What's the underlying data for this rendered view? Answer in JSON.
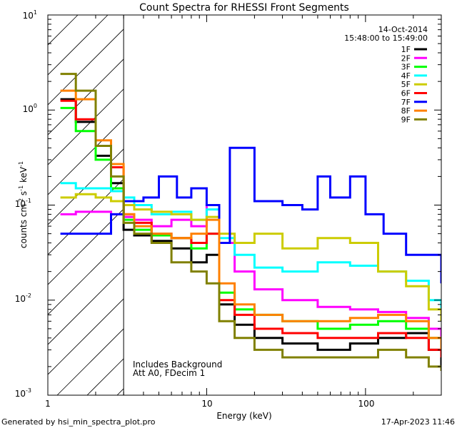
{
  "chart_data": {
    "type": "line",
    "title": "Count Spectra for RHESSI Front Segments",
    "xlabel": "Energy (keV)",
    "ylabel_parts": [
      "counts cm",
      "-2",
      " s",
      "-1",
      " keV",
      "-1"
    ],
    "xscale": "log",
    "yscale": "log",
    "xlim": [
      1,
      300
    ],
    "ylim": [
      0.001,
      10
    ],
    "x_ticks_major": [
      1,
      10,
      100
    ],
    "x_tick_labels": [
      "1",
      "10",
      "100"
    ],
    "y_ticks_major": [
      0.001,
      0.01,
      0.1,
      1,
      10
    ],
    "y_tick_label_base": [
      "10",
      "10",
      "10",
      "10",
      "10"
    ],
    "y_tick_label_exp": [
      "-3",
      "-2",
      "-1",
      "0",
      "1"
    ],
    "date": "14-Oct-2014",
    "time_range": "15:48:00 to 15:49:00",
    "annotations": [
      "Includes Background",
      "Att A0, FDecim 1"
    ],
    "excluded_region_max_keV": 3,
    "series": [
      {
        "name": "1F",
        "color": "#000000",
        "x": [
          1.2,
          1.5,
          2.0,
          2.5,
          3.0,
          3.5,
          4.5,
          6.0,
          8.0,
          10.0,
          12.0,
          15.0,
          20.0,
          30.0,
          50.0,
          80.0,
          120.0,
          180.0,
          250.0,
          300.0
        ],
        "y": [
          1.3,
          0.75,
          0.33,
          0.17,
          0.055,
          0.048,
          0.042,
          0.035,
          0.025,
          0.03,
          0.009,
          0.0055,
          0.004,
          0.0035,
          0.003,
          0.0035,
          0.004,
          0.0045,
          0.003,
          0.002
        ]
      },
      {
        "name": "2F",
        "color": "#ff00ff",
        "x": [
          1.2,
          1.5,
          2.0,
          2.5,
          3.0,
          3.5,
          4.5,
          6.0,
          8.0,
          10.0,
          12.0,
          15.0,
          20.0,
          30.0,
          50.0,
          80.0,
          120.0,
          180.0,
          250.0,
          300.0
        ],
        "y": [
          0.08,
          0.085,
          0.085,
          0.08,
          0.075,
          0.07,
          0.06,
          0.07,
          0.06,
          0.1,
          0.04,
          0.02,
          0.013,
          0.01,
          0.0085,
          0.008,
          0.0075,
          0.0065,
          0.005,
          0.0035
        ]
      },
      {
        "name": "3F",
        "color": "#00ff00",
        "x": [
          1.2,
          1.5,
          2.0,
          2.5,
          3.0,
          3.5,
          4.5,
          6.0,
          8.0,
          10.0,
          12.0,
          15.0,
          20.0,
          30.0,
          50.0,
          80.0,
          120.0,
          180.0,
          250.0,
          300.0
        ],
        "y": [
          1.05,
          0.6,
          0.3,
          0.15,
          0.07,
          0.055,
          0.048,
          0.045,
          0.035,
          0.05,
          0.012,
          0.008,
          0.007,
          0.006,
          0.005,
          0.0055,
          0.006,
          0.005,
          0.004,
          0.003
        ]
      },
      {
        "name": "4F",
        "color": "#00ffff",
        "x": [
          1.2,
          1.5,
          2.0,
          2.5,
          3.0,
          3.5,
          4.5,
          6.0,
          8.0,
          10.0,
          12.0,
          15.0,
          20.0,
          30.0,
          50.0,
          80.0,
          120.0,
          180.0,
          250.0,
          300.0
        ],
        "y": [
          0.17,
          0.15,
          0.15,
          0.14,
          0.12,
          0.1,
          0.08,
          0.085,
          0.07,
          0.09,
          0.045,
          0.03,
          0.022,
          0.02,
          0.025,
          0.023,
          0.02,
          0.016,
          0.01,
          0.007
        ]
      },
      {
        "name": "5F",
        "color": "#cccc00",
        "x": [
          1.2,
          1.5,
          2.0,
          2.5,
          3.0,
          3.5,
          4.5,
          6.0,
          8.0,
          10.0,
          12.0,
          15.0,
          20.0,
          30.0,
          50.0,
          80.0,
          120.0,
          180.0,
          250.0,
          300.0
        ],
        "y": [
          0.12,
          0.13,
          0.12,
          0.11,
          0.1,
          0.09,
          0.085,
          0.08,
          0.07,
          0.075,
          0.05,
          0.04,
          0.05,
          0.035,
          0.045,
          0.04,
          0.02,
          0.014,
          0.008,
          0.006
        ]
      },
      {
        "name": "6F",
        "color": "#ff0000",
        "x": [
          1.2,
          1.5,
          2.0,
          2.5,
          3.0,
          3.5,
          4.5,
          6.0,
          8.0,
          10.0,
          12.0,
          15.0,
          20.0,
          30.0,
          50.0,
          80.0,
          120.0,
          180.0,
          250.0,
          300.0
        ],
        "y": [
          1.25,
          0.8,
          0.42,
          0.25,
          0.08,
          0.065,
          0.05,
          0.045,
          0.04,
          0.05,
          0.01,
          0.007,
          0.005,
          0.0045,
          0.004,
          0.004,
          0.0045,
          0.004,
          0.003,
          0.0025
        ]
      },
      {
        "name": "7F",
        "color": "#0000ff",
        "x": [
          1.2,
          1.5,
          2.0,
          2.5,
          3.0,
          4.0,
          5.0,
          6.5,
          8.0,
          10.0,
          12.0,
          14.0,
          20.0,
          30.0,
          40.0,
          50.0,
          60.0,
          80.0,
          100.0,
          130.0,
          180.0,
          250.0,
          300.0
        ],
        "y": [
          0.05,
          0.05,
          0.05,
          0.08,
          0.11,
          0.12,
          0.2,
          0.12,
          0.15,
          0.1,
          0.04,
          0.4,
          0.11,
          0.1,
          0.09,
          0.2,
          0.12,
          0.2,
          0.08,
          0.05,
          0.03,
          0.03,
          0.015
        ]
      },
      {
        "name": "8F",
        "color": "#ff8000",
        "x": [
          1.2,
          1.5,
          2.0,
          2.5,
          3.0,
          3.5,
          4.5,
          6.0,
          8.0,
          10.0,
          12.0,
          15.0,
          20.0,
          30.0,
          50.0,
          80.0,
          120.0,
          180.0,
          250.0,
          300.0
        ],
        "y": [
          1.6,
          1.3,
          0.48,
          0.27,
          0.08,
          0.06,
          0.05,
          0.045,
          0.05,
          0.07,
          0.015,
          0.009,
          0.007,
          0.006,
          0.006,
          0.0065,
          0.007,
          0.006,
          0.004,
          0.003
        ]
      },
      {
        "name": "9F",
        "color": "#808000",
        "x": [
          1.2,
          1.5,
          2.0,
          2.5,
          3.0,
          3.5,
          4.5,
          6.0,
          8.0,
          10.0,
          12.0,
          15.0,
          20.0,
          30.0,
          50.0,
          80.0,
          120.0,
          180.0,
          250.0,
          300.0
        ],
        "y": [
          2.4,
          1.6,
          0.42,
          0.2,
          0.065,
          0.05,
          0.04,
          0.025,
          0.02,
          0.015,
          0.006,
          0.004,
          0.003,
          0.0025,
          0.0025,
          0.0025,
          0.003,
          0.0025,
          0.002,
          0.0018
        ]
      }
    ]
  },
  "footer": {
    "generated_by": "Generated by hsi_min_spectra_plot.pro",
    "timestamp": "17-Apr-2023 11:46"
  }
}
